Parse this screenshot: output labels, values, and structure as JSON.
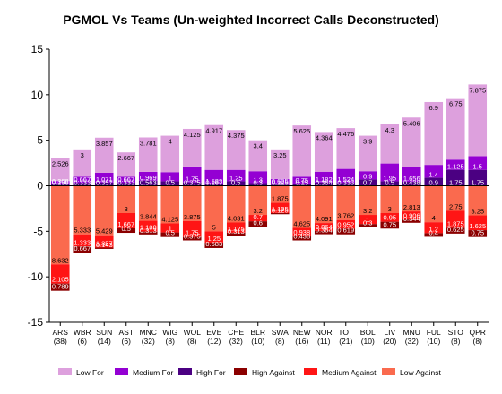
{
  "chart_data": {
    "type": "bar",
    "stacked": true,
    "title": "PGMOL Vs Teams (Un-weighted Incorrect Calls Deconstructed)",
    "xlabel": "",
    "ylabel": "",
    "ylim": [
      -15,
      15
    ],
    "yticks": [
      -15,
      -10,
      -5,
      0,
      5,
      10,
      15
    ],
    "grid": false,
    "legend_position": "bottom",
    "categories": [
      {
        "team": "ARS",
        "games": "(38)"
      },
      {
        "team": "WBR",
        "games": "(6)"
      },
      {
        "team": "SUN",
        "games": "(14)"
      },
      {
        "team": "AST",
        "games": "(6)"
      },
      {
        "team": "MNC",
        "games": "(32)"
      },
      {
        "team": "WIG",
        "games": "(8)"
      },
      {
        "team": "WOL",
        "games": "(8)"
      },
      {
        "team": "EVE",
        "games": "(12)"
      },
      {
        "team": "CHE",
        "games": "(32)"
      },
      {
        "team": "BLR",
        "games": "(10)"
      },
      {
        "team": "SWA",
        "games": "(8)"
      },
      {
        "team": "NEW",
        "games": "(16)"
      },
      {
        "team": "NOR",
        "games": "(11)"
      },
      {
        "team": "TOT",
        "games": "(21)"
      },
      {
        "team": "BOL",
        "games": "(10)"
      },
      {
        "team": "LIV",
        "games": "(20)"
      },
      {
        "team": "MNU",
        "games": "(32)"
      },
      {
        "team": "FUL",
        "games": "(10)"
      },
      {
        "team": "STO",
        "games": "(8)"
      },
      {
        "team": "QPR",
        "games": "(8)"
      }
    ],
    "positive_series": [
      {
        "name": "High For",
        "color": "#4b0082",
        "values": [
          0.158,
          0.333,
          0.357,
          0.333,
          0.563,
          0.5,
          0.375,
          0.167,
          0.5,
          0.3,
          0.125,
          0.25,
          0.364,
          0.333,
          0.7,
          0.5,
          0.438,
          0.9,
          1.75,
          1.75
        ]
      },
      {
        "name": "Medium For",
        "color": "#9400d3",
        "values": [
          0.368,
          0.667,
          1.071,
          0.667,
          0.969,
          1.0,
          1.75,
          1.583,
          1.25,
          1.3,
          0.625,
          0.75,
          1.182,
          1.524,
          0.9,
          1.95,
          1.656,
          1.4,
          1.125,
          1.5
        ]
      },
      {
        "name": "Low For",
        "color": "#dda0dd",
        "values": [
          2.526,
          3.0,
          3.857,
          2.667,
          3.781,
          4.0,
          4.125,
          4.917,
          4.375,
          3.4,
          3.25,
          5.625,
          4.364,
          4.476,
          3.9,
          4.3,
          5.406,
          6.9,
          6.75,
          7.875
        ]
      }
    ],
    "negative_series": [
      {
        "name": "Low Against",
        "color": "#fa6a4e",
        "values": [
          -8.632,
          -5.333,
          -5.429,
          -3.0,
          -3.844,
          -4.125,
          -3.875,
          -5.0,
          -4.031,
          -3.2,
          -1.875,
          -4.625,
          -4.091,
          -3.762,
          -3.2,
          -3.0,
          -2.813,
          -4.0,
          -2.75,
          -3.25
        ]
      },
      {
        "name": "Medium Against",
        "color": "#ff1515",
        "values": [
          -2.105,
          -1.333,
          -1.357,
          -1.667,
          -1.188,
          -1.0,
          -1.75,
          -1.25,
          -1.125,
          -0.7,
          -1.125,
          -0.938,
          -0.864,
          -0.952,
          -1.0,
          -0.95,
          -0.906,
          -1.2,
          -1.875,
          -1.625
        ]
      },
      {
        "name": "High Against",
        "color": "#8b0000",
        "values": [
          -0.789,
          -0.667,
          -0.143,
          -0.5,
          -0.313,
          -0.5,
          -0.375,
          -0.583,
          -0.313,
          -0.6,
          -0.125,
          -0.438,
          -0.364,
          -0.619,
          -0.3,
          -0.75,
          -0.344,
          -0.4,
          -0.625,
          -0.75
        ]
      }
    ],
    "legend": [
      {
        "name": "Low For",
        "color": "#dda0dd"
      },
      {
        "name": "Medium For",
        "color": "#9400d3"
      },
      {
        "name": "High For",
        "color": "#4b0082"
      },
      {
        "name": "High Against",
        "color": "#8b0000"
      },
      {
        "name": "Medium Against",
        "color": "#ff1515"
      },
      {
        "name": "Low Against",
        "color": "#fa6a4e"
      }
    ]
  }
}
